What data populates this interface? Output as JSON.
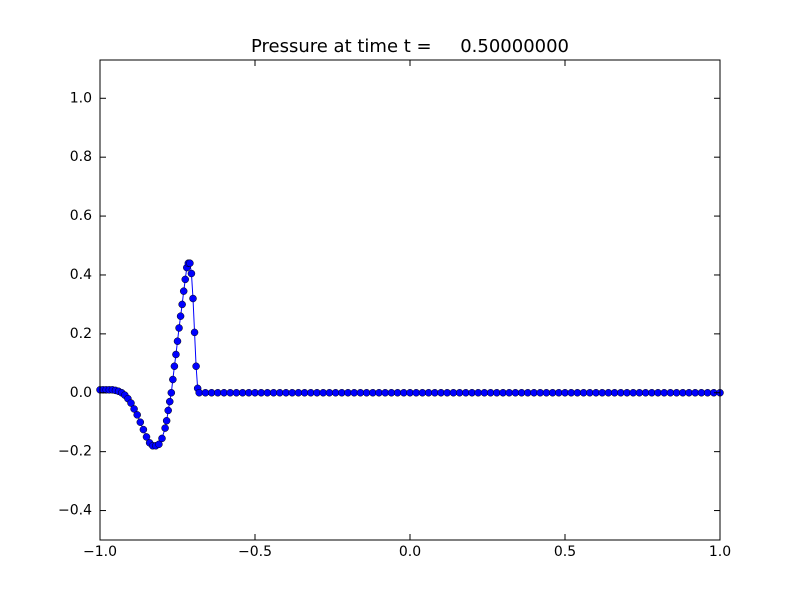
{
  "chart_data": {
    "type": "line",
    "title": "Pressure at time t =     0.50000000",
    "x": [
      -1.0,
      -0.99,
      -0.98,
      -0.97,
      -0.96,
      -0.95,
      -0.94,
      -0.93,
      -0.92,
      -0.91,
      -0.9,
      -0.89,
      -0.88,
      -0.87,
      -0.86,
      -0.85,
      -0.84,
      -0.83,
      -0.82,
      -0.81,
      -0.8,
      -0.79,
      -0.785,
      -0.78,
      -0.775,
      -0.77,
      -0.765,
      -0.76,
      -0.755,
      -0.75,
      -0.745,
      -0.74,
      -0.735,
      -0.73,
      -0.725,
      -0.72,
      -0.715,
      -0.71,
      -0.705,
      -0.7,
      -0.695,
      -0.69,
      -0.685,
      -0.68,
      -0.66,
      -0.64,
      -0.62,
      -0.6,
      -0.58,
      -0.56,
      -0.54,
      -0.52,
      -0.5,
      -0.48,
      -0.46,
      -0.44,
      -0.42,
      -0.4,
      -0.38,
      -0.36,
      -0.34,
      -0.32,
      -0.3,
      -0.28,
      -0.26,
      -0.24,
      -0.22,
      -0.2,
      -0.18,
      -0.16,
      -0.14,
      -0.12,
      -0.1,
      -0.08,
      -0.06,
      -0.04,
      -0.02,
      0.0,
      0.02,
      0.04,
      0.06,
      0.08,
      0.1,
      0.12,
      0.14,
      0.16,
      0.18,
      0.2,
      0.22,
      0.24,
      0.26,
      0.28,
      0.3,
      0.32,
      0.34,
      0.36,
      0.38,
      0.4,
      0.42,
      0.44,
      0.46,
      0.48,
      0.5,
      0.52,
      0.54,
      0.56,
      0.58,
      0.6,
      0.62,
      0.64,
      0.66,
      0.68,
      0.7,
      0.72,
      0.74,
      0.76,
      0.78,
      0.8,
      0.82,
      0.84,
      0.86,
      0.88,
      0.9,
      0.92,
      0.94,
      0.96,
      0.98,
      1.0
    ],
    "series": [
      {
        "color": "#0000ff",
        "values": [
          0.01,
          0.01,
          0.01,
          0.01,
          0.01,
          0.008,
          0.005,
          0.0,
          -0.008,
          -0.02,
          -0.035,
          -0.055,
          -0.075,
          -0.1,
          -0.125,
          -0.15,
          -0.17,
          -0.18,
          -0.18,
          -0.175,
          -0.155,
          -0.12,
          -0.095,
          -0.06,
          -0.03,
          0.0,
          0.045,
          0.09,
          0.13,
          0.175,
          0.22,
          0.26,
          0.3,
          0.345,
          0.385,
          0.425,
          0.44,
          0.44,
          0.405,
          0.32,
          0.205,
          0.09,
          0.015,
          0,
          0,
          0,
          0,
          0,
          0,
          0,
          0,
          0,
          0,
          0,
          0,
          0,
          0,
          0,
          0,
          0,
          0,
          0,
          0,
          0,
          0,
          0,
          0,
          0,
          0,
          0,
          0,
          0,
          0,
          0,
          0,
          0,
          0,
          0,
          0,
          0,
          0,
          0,
          0,
          0,
          0,
          0,
          0,
          0,
          0,
          0,
          0,
          0,
          0,
          0,
          0,
          0,
          0,
          0,
          0,
          0,
          0,
          0,
          0,
          0,
          0,
          0,
          0,
          0,
          0,
          0,
          0,
          0,
          0,
          0,
          0,
          0,
          0,
          0,
          0,
          0,
          0,
          0,
          0,
          0,
          0,
          0,
          0,
          0
        ]
      }
    ],
    "xlim": [
      -1.0,
      1.0
    ],
    "ylim": [
      -0.5,
      1.13
    ],
    "xticks": [
      {
        "value": -1.0,
        "label": "−1.0"
      },
      {
        "value": -0.5,
        "label": "−0.5"
      },
      {
        "value": 0.0,
        "label": "0.0"
      },
      0.5,
      {
        "value": 1.0,
        "label": "1.0"
      }
    ],
    "yticks": [
      {
        "value": -0.4,
        "label": "−0.4"
      },
      {
        "value": -0.2,
        "label": "−0.2"
      },
      {
        "value": 0.0,
        "label": "0.0"
      },
      0.2,
      0.4,
      0.6,
      0.8,
      {
        "value": 1.0,
        "label": "1.0"
      }
    ]
  }
}
